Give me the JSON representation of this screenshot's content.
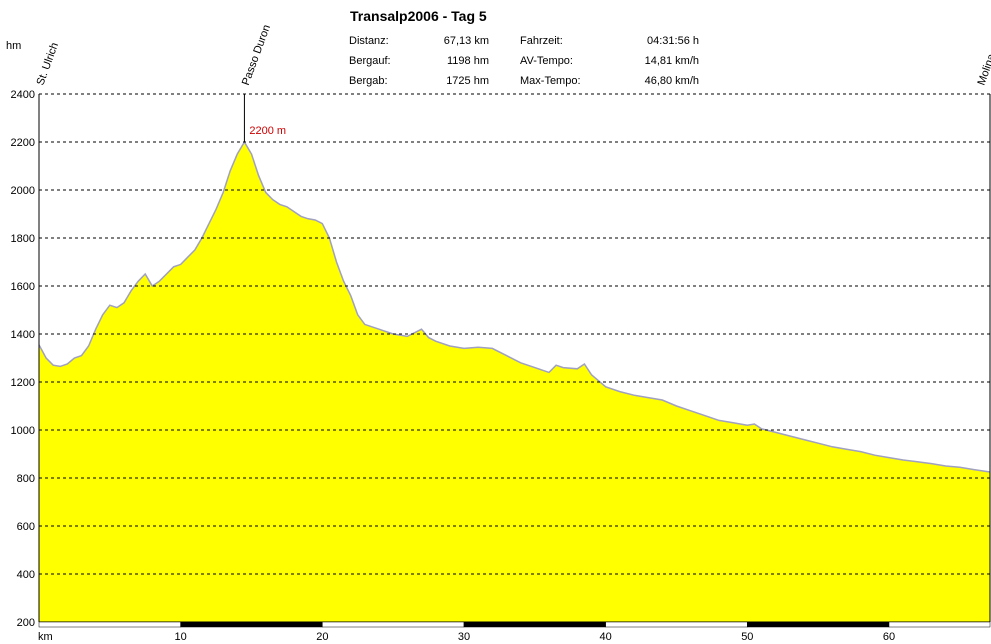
{
  "chart_data": {
    "type": "area",
    "title": "Transalp2006 - Tag 5",
    "ylabel": "hm",
    "xlabel": "km",
    "xlim": [
      0,
      67.13
    ],
    "ylim": [
      200,
      2400
    ],
    "yticks": [
      200,
      400,
      600,
      800,
      1000,
      1200,
      1400,
      1600,
      1800,
      2000,
      2200,
      2400
    ],
    "xticks": [
      10,
      20,
      30,
      40,
      50,
      60
    ],
    "grid": true,
    "fill_color": "#ffff00",
    "line_color": "#a0a0c0",
    "series": [
      {
        "x": [
          0,
          0.5,
          1.0,
          1.5,
          2.0,
          2.5,
          3.0,
          3.5,
          4.0,
          4.5,
          5.0,
          5.5,
          6.0,
          6.5,
          7.0,
          7.5,
          8.0,
          8.5,
          9.0,
          9.5,
          10.0,
          10.5,
          11.0,
          11.5,
          12.0,
          12.5,
          13.0,
          13.5,
          14.0,
          14.5,
          15.0,
          15.5,
          16.0,
          16.5,
          17.0,
          17.5,
          18.0,
          18.5,
          19.0,
          19.5,
          20.0,
          20.5,
          21.0,
          21.5,
          22.0,
          22.5,
          23.0,
          24.0,
          25.0,
          26.0,
          27.0,
          27.5,
          28.0,
          29.0,
          30.0,
          31.0,
          32.0,
          33.0,
          34.0,
          35.0,
          36.0,
          36.5,
          37.0,
          38.0,
          38.5,
          39.0,
          40.0,
          41.0,
          42.0,
          43.0,
          44.0,
          45.0,
          46.0,
          47.0,
          48.0,
          49.0,
          50.0,
          50.5,
          51.0,
          52.0,
          53.0,
          54.0,
          55.0,
          56.0,
          57.0,
          58.0,
          59.0,
          60.0,
          61.0,
          62.0,
          63.0,
          64.0,
          65.0,
          66.0,
          67.13
        ],
        "values": [
          1355,
          1300,
          1270,
          1265,
          1275,
          1300,
          1310,
          1350,
          1420,
          1480,
          1520,
          1510,
          1530,
          1580,
          1620,
          1650,
          1600,
          1620,
          1650,
          1680,
          1690,
          1720,
          1750,
          1800,
          1860,
          1920,
          1990,
          2080,
          2150,
          2200,
          2150,
          2060,
          1990,
          1960,
          1940,
          1930,
          1910,
          1890,
          1880,
          1875,
          1860,
          1800,
          1700,
          1620,
          1560,
          1480,
          1440,
          1420,
          1400,
          1390,
          1420,
          1385,
          1370,
          1350,
          1340,
          1345,
          1340,
          1310,
          1280,
          1260,
          1240,
          1270,
          1260,
          1255,
          1275,
          1230,
          1180,
          1160,
          1145,
          1135,
          1125,
          1100,
          1080,
          1060,
          1040,
          1030,
          1020,
          1025,
          1005,
          990,
          975,
          960,
          945,
          930,
          920,
          910,
          895,
          885,
          875,
          868,
          860,
          850,
          845,
          835,
          825
        ]
      }
    ],
    "annotations": [
      {
        "x": 0,
        "label": "St. Ulrich"
      },
      {
        "x": 14.5,
        "label": "Passo Duron"
      },
      {
        "x": 67.13,
        "label": "Molina"
      }
    ],
    "peak_label": "2200 m",
    "peak_x": 14.5,
    "peak_value": 2200
  },
  "stats": [
    {
      "label": "Distanz:",
      "value": "67,13 km"
    },
    {
      "label": "Bergauf:",
      "value": "1198 hm"
    },
    {
      "label": "Bergab:",
      "value": "1725 hm"
    },
    {
      "label": "Fahrzeit:",
      "value": "04:31:56 h"
    },
    {
      "label": "AV-Tempo:",
      "value": "14,81 km/h"
    },
    {
      "label": "Max-Tempo:",
      "value": "46,80 km/h"
    }
  ]
}
